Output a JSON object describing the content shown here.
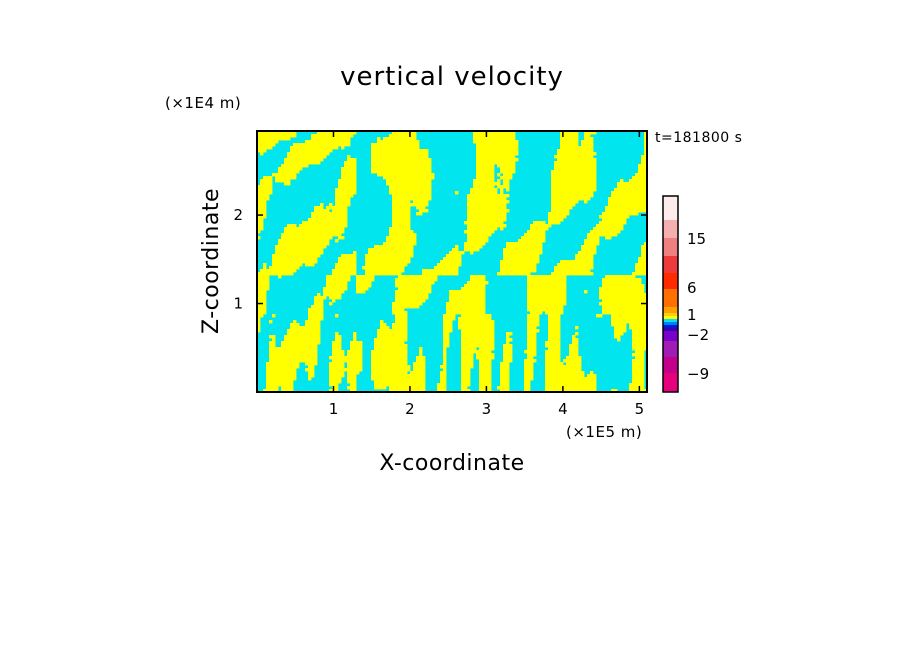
{
  "chart_data": {
    "type": "heatmap",
    "title": "vertical velocity",
    "time_label": "t=181800 s",
    "xlabel": "X-coordinate",
    "ylabel": "Z-coordinate",
    "x_scale_label": "(×1E5 m)",
    "y_scale_label": "(×1E4 m)",
    "xlim": [
      0,
      5.1
    ],
    "ylim": [
      0,
      2.95
    ],
    "x_ticks": [
      {
        "value": 1,
        "label": "1"
      },
      {
        "value": 2,
        "label": "2"
      },
      {
        "value": 3,
        "label": "3"
      },
      {
        "value": 4,
        "label": "4"
      },
      {
        "value": 5,
        "label": "5"
      }
    ],
    "y_ticks": [
      {
        "value": 1,
        "label": "1"
      },
      {
        "value": 2,
        "label": "2"
      }
    ],
    "field_colors": {
      "positive": "#ffff00",
      "negative": "#00e5ee"
    },
    "colorbar": {
      "levels": [
        {
          "color": "#e6007e"
        },
        {
          "color": "#c2008a"
        },
        {
          "color": "#a01cb4"
        },
        {
          "color": "#7a00cc"
        },
        {
          "color": "#3a00b0"
        },
        {
          "color": "#0020d0"
        },
        {
          "color": "#0078ff"
        },
        {
          "color": "#00e5ee"
        },
        {
          "color": "#ffff00"
        },
        {
          "color": "#ffd000"
        },
        {
          "color": "#ffa000"
        },
        {
          "color": "#ff7000"
        },
        {
          "color": "#ff2a00"
        },
        {
          "color": "#ee3a3a"
        },
        {
          "color": "#f08080"
        },
        {
          "color": "#f4b0b0"
        },
        {
          "color": "#fcecec"
        }
      ],
      "labels": [
        "15",
        "6",
        "1",
        "−2",
        "−9"
      ]
    }
  }
}
